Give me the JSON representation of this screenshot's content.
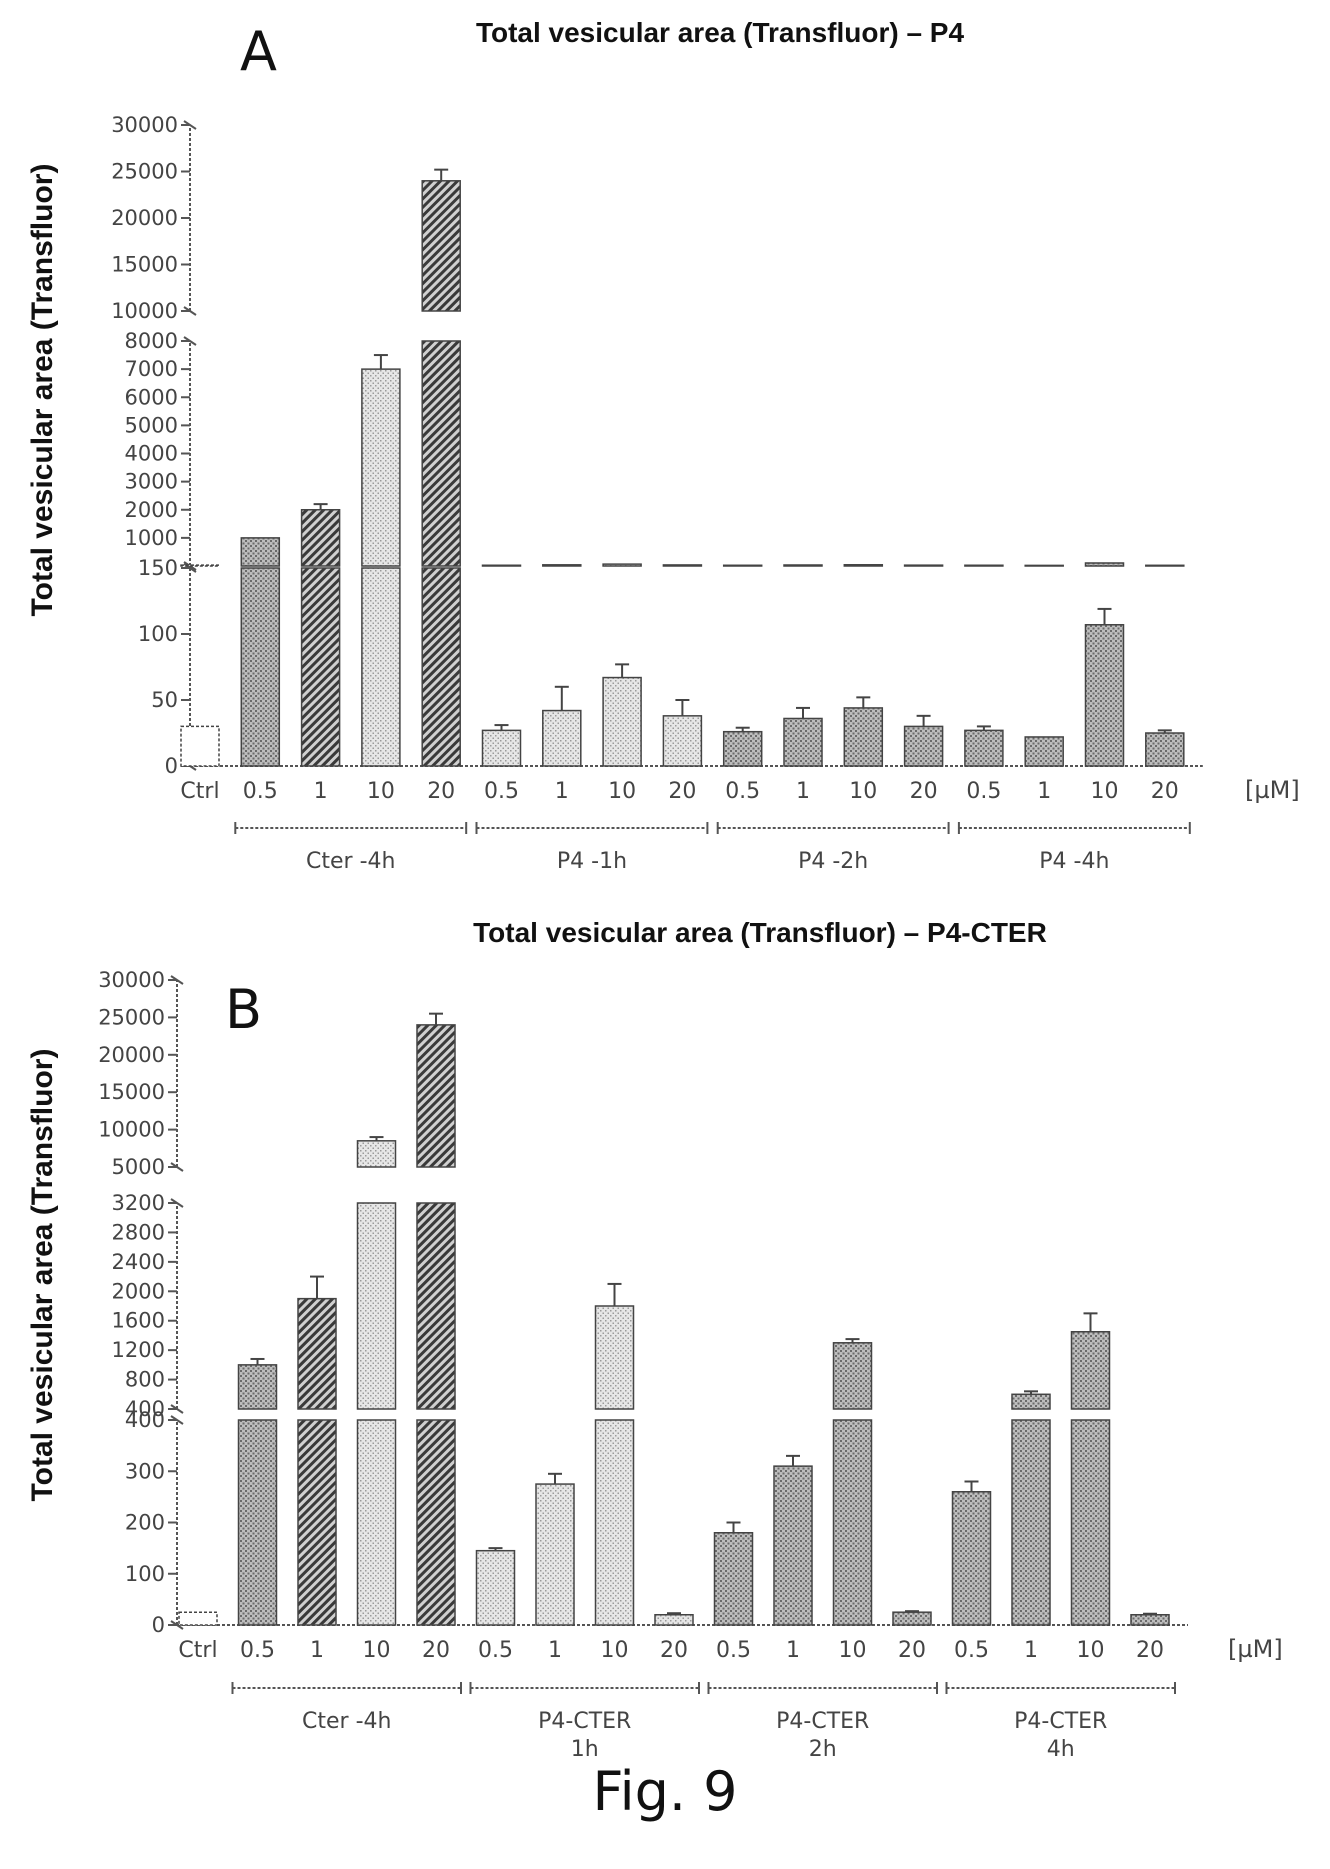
{
  "figure_caption": "Fig. 9",
  "colors": {
    "axis": "#555555",
    "text": "#222222",
    "bar_stroke": "#444444"
  },
  "chart_data": [
    {
      "type": "bar",
      "panel": "A",
      "title": "Total vesicular area (Transfluor) – P4",
      "ylabel": "Total vesicular area (Transfluor)",
      "unit": "[µM]",
      "y_axis_broken": true,
      "segments": [
        {
          "range": [
            0,
            150
          ],
          "ticks": [
            "0",
            "50",
            "100",
            "150"
          ],
          "tick_values": [
            0,
            50,
            100,
            150
          ]
        },
        {
          "range": [
            0,
            8000
          ],
          "ticks": [
            "1000",
            "2000",
            "3000",
            "4000",
            "5000",
            "6000",
            "7000",
            "8000"
          ],
          "tick_values": [
            1000,
            2000,
            3000,
            4000,
            5000,
            6000,
            7000,
            8000
          ]
        },
        {
          "range": [
            10000,
            30000
          ],
          "ticks": [
            "10000",
            "15000",
            "20000",
            "25000",
            "30000"
          ],
          "tick_values": [
            10000,
            15000,
            20000,
            25000,
            30000
          ]
        }
      ],
      "categories": [
        "Ctrl",
        "0.5",
        "1",
        "10",
        "20",
        "0.5",
        "1",
        "10",
        "20",
        "0.5",
        "1",
        "10",
        "20",
        "0.5",
        "1",
        "10",
        "20"
      ],
      "values": [
        30,
        1000,
        2000,
        7000,
        24000,
        27,
        42,
        67,
        38,
        26,
        36,
        44,
        30,
        27,
        22,
        107,
        25
      ],
      "errors": [
        0,
        0,
        200,
        500,
        1200,
        4,
        18,
        10,
        12,
        3,
        8,
        8,
        8,
        3,
        0,
        12,
        2
      ],
      "patterns": [
        "white",
        "dense",
        "diag",
        "light",
        "diag",
        "light",
        "light",
        "light",
        "light",
        "dense",
        "dense",
        "dense",
        "dense",
        "dense",
        "dense",
        "dense",
        "dense"
      ],
      "groups": [
        {
          "label": [
            "Cter -4h"
          ],
          "from": 1,
          "to": 4
        },
        {
          "label": [
            "P4 -1h"
          ],
          "from": 5,
          "to": 8
        },
        {
          "label": [
            "P4 -2h"
          ],
          "from": 9,
          "to": 12
        },
        {
          "label": [
            "P4 -4h"
          ],
          "from": 13,
          "to": 16
        }
      ]
    },
    {
      "type": "bar",
      "panel": "B",
      "title": "Total vesicular area (Transfluor) – P4-CTER",
      "ylabel": "Total vesicular area (Transfluor)",
      "unit": "[µM]",
      "y_axis_broken": true,
      "segments": [
        {
          "range": [
            0,
            400
          ],
          "ticks": [
            "0",
            "100",
            "200",
            "300",
            "400"
          ],
          "tick_values": [
            0,
            100,
            200,
            300,
            400
          ]
        },
        {
          "range": [
            400,
            3200
          ],
          "ticks": [
            "400",
            "800",
            "1200",
            "1600",
            "2000",
            "2400",
            "2800",
            "3200"
          ],
          "tick_values": [
            400,
            800,
            1200,
            1600,
            2000,
            2400,
            2800,
            3200
          ]
        },
        {
          "range": [
            5000,
            30000
          ],
          "ticks": [
            "5000",
            "10000",
            "15000",
            "20000",
            "25000",
            "30000"
          ],
          "tick_values": [
            5000,
            10000,
            15000,
            20000,
            25000,
            30000
          ]
        }
      ],
      "categories": [
        "Ctrl",
        "0.5",
        "1",
        "10",
        "20",
        "0.5",
        "1",
        "10",
        "20",
        "0.5",
        "1",
        "10",
        "20",
        "0.5",
        "1",
        "10",
        "20"
      ],
      "values": [
        25,
        1000,
        1900,
        8500,
        24000,
        145,
        275,
        1800,
        20,
        180,
        310,
        1300,
        25,
        260,
        600,
        1450,
        20
      ],
      "errors": [
        0,
        80,
        300,
        500,
        1500,
        5,
        20,
        300,
        3,
        20,
        20,
        50,
        2,
        20,
        40,
        250,
        2
      ],
      "patterns": [
        "white",
        "dense",
        "diag",
        "light",
        "diag",
        "light",
        "light",
        "light",
        "light",
        "dense",
        "dense",
        "dense",
        "dense",
        "dense",
        "dense",
        "dense",
        "dense"
      ],
      "groups": [
        {
          "label": [
            "Cter -4h"
          ],
          "from": 1,
          "to": 4
        },
        {
          "label": [
            "P4-CTER",
            "1h"
          ],
          "from": 5,
          "to": 8
        },
        {
          "label": [
            "P4-CTER",
            "2h"
          ],
          "from": 9,
          "to": 12
        },
        {
          "label": [
            "P4-CTER",
            "4h"
          ],
          "from": 13,
          "to": 16
        }
      ]
    }
  ]
}
